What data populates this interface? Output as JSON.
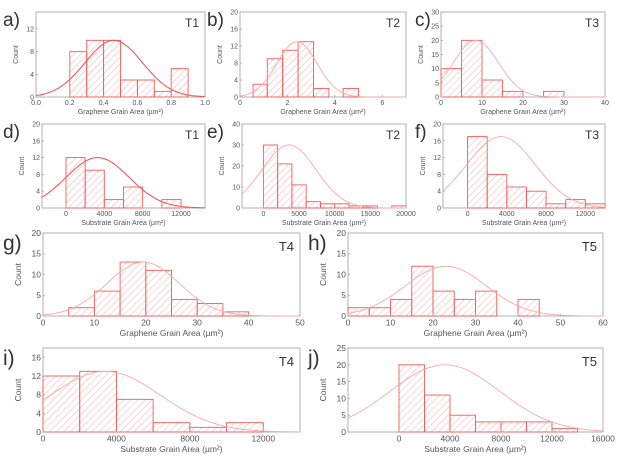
{
  "figure": {
    "description": "Grain area histograms with Gaussian fits for samples T1–T5"
  },
  "chart_data": [
    {
      "id": "a",
      "panel_label": "a)",
      "tag": "T1",
      "type": "bar",
      "xlabel": "Graphene Grain Area (µm²)",
      "ylabel": "Count",
      "xlim": [
        0,
        1.0
      ],
      "ylim": [
        0,
        15
      ],
      "xticks": [
        0,
        0.2,
        0.4,
        0.6,
        0.8,
        1.0
      ],
      "xtick_labels": [
        "0.0",
        "0.2",
        "0.4",
        "0.6",
        "0.8",
        "1.0"
      ],
      "yticks": [
        0,
        4,
        8,
        12
      ],
      "ytick_labels": [
        "0",
        "4",
        "8",
        "12"
      ],
      "bins": [
        [
          0.2,
          0.3
        ],
        [
          0.3,
          0.4
        ],
        [
          0.4,
          0.5
        ],
        [
          0.5,
          0.6
        ],
        [
          0.6,
          0.7
        ],
        [
          0.7,
          0.8
        ],
        [
          0.8,
          0.9
        ]
      ],
      "values": [
        8,
        10,
        10,
        3,
        3,
        1,
        5
      ],
      "fit": {
        "type": "gaussian",
        "amplitude": 10,
        "mean": 0.46,
        "sigma": 0.17
      },
      "show_ylabel": true,
      "show_xlabel": true
    },
    {
      "id": "b",
      "panel_label": "b)",
      "tag": "T2",
      "type": "bar",
      "xlabel": "Graphene Grain Area (µm²)",
      "ylabel": "Count",
      "xlim": [
        0,
        7
      ],
      "ylim": [
        0,
        20
      ],
      "xticks": [
        0,
        2,
        4,
        6
      ],
      "xtick_labels": [
        "0",
        "2",
        "4",
        "6"
      ],
      "yticks": [
        0,
        4,
        8,
        12,
        16,
        20
      ],
      "ytick_labels": [
        "0",
        "4",
        "8",
        "12",
        "16",
        "20"
      ],
      "bins": [
        [
          0.55,
          1.15
        ],
        [
          1.15,
          1.8
        ],
        [
          1.8,
          2.45
        ],
        [
          2.45,
          3.1
        ],
        [
          3.1,
          3.75
        ],
        [
          4.35,
          5.0
        ]
      ],
      "values": [
        3,
        9,
        11,
        13,
        2,
        2
      ],
      "fit": {
        "type": "gaussian",
        "amplitude": 13,
        "mean": 2.4,
        "sigma": 0.85
      },
      "show_ylabel": true,
      "show_xlabel": true
    },
    {
      "id": "c",
      "panel_label": "c)",
      "tag": "T3",
      "type": "bar",
      "xlabel": "Graphene Grain Area (µm²)",
      "ylabel": "Count",
      "xlim": [
        0,
        40
      ],
      "ylim": [
        0,
        30
      ],
      "xticks": [
        0,
        10,
        20,
        30,
        40
      ],
      "xtick_labels": [
        "0",
        "10",
        "20",
        "30",
        "40"
      ],
      "yticks": [
        0,
        5,
        10,
        15,
        20,
        25,
        30
      ],
      "ytick_labels": [
        "0",
        "5",
        "10",
        "15",
        "20",
        "25",
        "30"
      ],
      "bins": [
        [
          0,
          5
        ],
        [
          5,
          10
        ],
        [
          10,
          15
        ],
        [
          15,
          20
        ],
        [
          25,
          30
        ]
      ],
      "values": [
        10,
        20,
        6,
        2,
        2
      ],
      "fit": {
        "type": "gaussian",
        "amplitude": 20,
        "mean": 8.5,
        "sigma": 5.5
      },
      "show_ylabel": true,
      "show_xlabel": true
    },
    {
      "id": "d",
      "panel_label": "d)",
      "tag": "T1",
      "type": "bar",
      "xlabel": "Substrate Grain Area (µm²)",
      "ylabel": "Count",
      "xlim": [
        -2500,
        14500
      ],
      "ylim": [
        0,
        20
      ],
      "xticks": [
        0,
        4000,
        8000,
        12000
      ],
      "xtick_labels": [
        "0",
        "4000",
        "8000",
        "12000"
      ],
      "yticks": [
        0,
        4,
        8,
        12,
        16,
        20
      ],
      "ytick_labels": [
        "0",
        "4",
        "8",
        "12",
        "16",
        "20"
      ],
      "bins": [
        [
          0,
          2000
        ],
        [
          2000,
          4000
        ],
        [
          4000,
          6000
        ],
        [
          6000,
          8000
        ],
        [
          10000,
          12000
        ]
      ],
      "values": [
        12,
        9,
        2,
        5,
        2
      ],
      "fit": {
        "type": "gaussian",
        "amplitude": 12,
        "mean": 3300,
        "sigma": 3300
      },
      "show_ylabel": true,
      "show_xlabel": true
    },
    {
      "id": "e",
      "panel_label": "e)",
      "tag": "T2",
      "type": "bar",
      "xlabel": "Substrate Grain Area (µm²)",
      "ylabel": "Count",
      "xlim": [
        -3000,
        20000
      ],
      "ylim": [
        0,
        40
      ],
      "xticks": [
        0,
        5000,
        10000,
        15000,
        20000
      ],
      "xtick_labels": [
        "0",
        "5000",
        "10000",
        "15000",
        "20000"
      ],
      "yticks": [
        0,
        10,
        20,
        30,
        40
      ],
      "ytick_labels": [
        "0",
        "10",
        "20",
        "30",
        "40"
      ],
      "bins": [
        [
          0,
          2000
        ],
        [
          2000,
          4000
        ],
        [
          4000,
          6000
        ],
        [
          6000,
          8000
        ],
        [
          8000,
          10000
        ],
        [
          10000,
          12000
        ],
        [
          12000,
          14000
        ],
        [
          14000,
          16000
        ],
        [
          18000,
          20000
        ]
      ],
      "values": [
        30,
        21,
        11,
        3,
        2,
        2,
        1,
        1,
        1
      ],
      "fit": {
        "type": "gaussian",
        "amplitude": 30,
        "mean": 3600,
        "sigma": 3800
      },
      "show_ylabel": true,
      "show_xlabel": true
    },
    {
      "id": "f",
      "panel_label": "f)",
      "tag": "T3",
      "type": "bar",
      "xlabel": "Substrate Grain Area (µm²)",
      "ylabel": "Count",
      "xlim": [
        -2500,
        14000
      ],
      "ylim": [
        0,
        20
      ],
      "xticks": [
        0,
        4000,
        8000,
        12000
      ],
      "xtick_labels": [
        "0",
        "4000",
        "8000",
        "12000"
      ],
      "yticks": [
        0,
        4,
        8,
        12,
        16,
        20
      ],
      "ytick_labels": [
        "0",
        "4",
        "8",
        "12",
        "16",
        "20"
      ],
      "bins": [
        [
          0,
          2000
        ],
        [
          2000,
          4000
        ],
        [
          4000,
          6000
        ],
        [
          6000,
          8000
        ],
        [
          8000,
          10000
        ],
        [
          10000,
          12000
        ],
        [
          12000,
          14000
        ]
      ],
      "values": [
        17,
        8,
        5,
        4,
        1,
        2,
        1
      ],
      "fit": {
        "type": "gaussian",
        "amplitude": 17,
        "mean": 3400,
        "sigma": 3500
      },
      "show_ylabel": true,
      "show_xlabel": true
    },
    {
      "id": "g",
      "panel_label": "g)",
      "tag": "T4",
      "type": "bar",
      "xlabel": "Graphene Grain Area (µm²)",
      "ylabel": "Count",
      "xlim": [
        0,
        50
      ],
      "ylim": [
        0,
        20
      ],
      "xticks": [
        0,
        10,
        20,
        30,
        40,
        50
      ],
      "xtick_labels": [
        "0",
        "10",
        "20",
        "30",
        "40",
        "50"
      ],
      "yticks": [
        0,
        5,
        10,
        15,
        20
      ],
      "ytick_labels": [
        "0",
        "5",
        "10",
        "15",
        "20"
      ],
      "bins": [
        [
          5,
          10
        ],
        [
          10,
          15
        ],
        [
          15,
          20
        ],
        [
          20,
          25
        ],
        [
          25,
          30
        ],
        [
          30,
          35
        ],
        [
          35,
          40
        ]
      ],
      "values": [
        2,
        6,
        13,
        11,
        4,
        3,
        1
      ],
      "fit": {
        "type": "gaussian",
        "amplitude": 13,
        "mean": 19.5,
        "sigma": 7
      },
      "show_ylabel": true,
      "show_xlabel": true
    },
    {
      "id": "h",
      "panel_label": "h)",
      "tag": "T5",
      "type": "bar",
      "xlabel": "Graphene Grain Area (µm²)",
      "ylabel": "Count",
      "xlim": [
        0,
        60
      ],
      "ylim": [
        0,
        20
      ],
      "xticks": [
        0,
        10,
        20,
        30,
        40,
        50,
        60
      ],
      "xtick_labels": [
        "0",
        "10",
        "20",
        "30",
        "40",
        "50",
        "60"
      ],
      "yticks": [
        0,
        5,
        10,
        15,
        20
      ],
      "ytick_labels": [
        "0",
        "5",
        "10",
        "15",
        "20"
      ],
      "bins": [
        [
          0,
          5
        ],
        [
          5,
          10
        ],
        [
          10,
          15
        ],
        [
          15,
          20
        ],
        [
          20,
          25
        ],
        [
          25,
          30
        ],
        [
          30,
          35
        ],
        [
          40,
          45
        ]
      ],
      "values": [
        2,
        2,
        4,
        12,
        6,
        4,
        6,
        4
      ],
      "fit": {
        "type": "gaussian",
        "amplitude": 12,
        "mean": 23,
        "sigma": 9.5
      },
      "show_ylabel": true,
      "show_xlabel": true
    },
    {
      "id": "i",
      "panel_label": "i)",
      "tag": "T4",
      "type": "bar",
      "xlabel": "Substrate Grain Area (µm²)",
      "ylabel": "Count",
      "xlim": [
        0,
        14000
      ],
      "ylim": [
        0,
        18
      ],
      "xticks": [
        0,
        4000,
        8000,
        12000
      ],
      "xtick_labels": [
        "0",
        "4000",
        "8000",
        "12000"
      ],
      "yticks": [
        0,
        4,
        8,
        12,
        16
      ],
      "ytick_labels": [
        "0",
        "4",
        "8",
        "12",
        "16"
      ],
      "bins": [
        [
          0,
          2000
        ],
        [
          2000,
          4000
        ],
        [
          4000,
          6000
        ],
        [
          6000,
          8000
        ],
        [
          8000,
          10000
        ],
        [
          10000,
          12000
        ]
      ],
      "values": [
        12,
        13,
        7,
        2,
        1,
        2
      ],
      "fit": {
        "type": "gaussian",
        "amplitude": 13,
        "mean": 3400,
        "sigma": 3000
      },
      "show_ylabel": true,
      "show_xlabel": true
    },
    {
      "id": "j",
      "panel_label": "j)",
      "tag": "T5",
      "type": "bar",
      "xlabel": "Substrate Grain Area (µm²)",
      "ylabel": "Count",
      "xlim": [
        -4000,
        16000
      ],
      "ylim": [
        0,
        25
      ],
      "xticks": [
        0,
        4000,
        8000,
        12000,
        16000
      ],
      "xtick_labels": [
        "0",
        "4000",
        "8000",
        "12000",
        "16000"
      ],
      "yticks": [
        0,
        5,
        10,
        15,
        20,
        25
      ],
      "ytick_labels": [
        "0",
        "5",
        "10",
        "15",
        "20",
        "25"
      ],
      "bins": [
        [
          0,
          2000
        ],
        [
          2000,
          4000
        ],
        [
          4000,
          6000
        ],
        [
          6000,
          8000
        ],
        [
          8000,
          10000
        ],
        [
          10000,
          12000
        ],
        [
          12000,
          14000
        ]
      ],
      "values": [
        20,
        11,
        5,
        3,
        3,
        3,
        1
      ],
      "fit": {
        "type": "gaussian",
        "amplitude": 20,
        "mean": 3600,
        "sigma": 4300
      },
      "show_ylabel": true,
      "show_xlabel": true
    }
  ],
  "colors": {
    "bar_stroke": "#f25c5c",
    "hatch": "#f7a3a3",
    "fit_line_dark": "#ee5a5a",
    "fit_line_light": "#f7a9a9",
    "frame": "#a9a9a9",
    "text": "#555555",
    "panel_letter": "#333333"
  }
}
